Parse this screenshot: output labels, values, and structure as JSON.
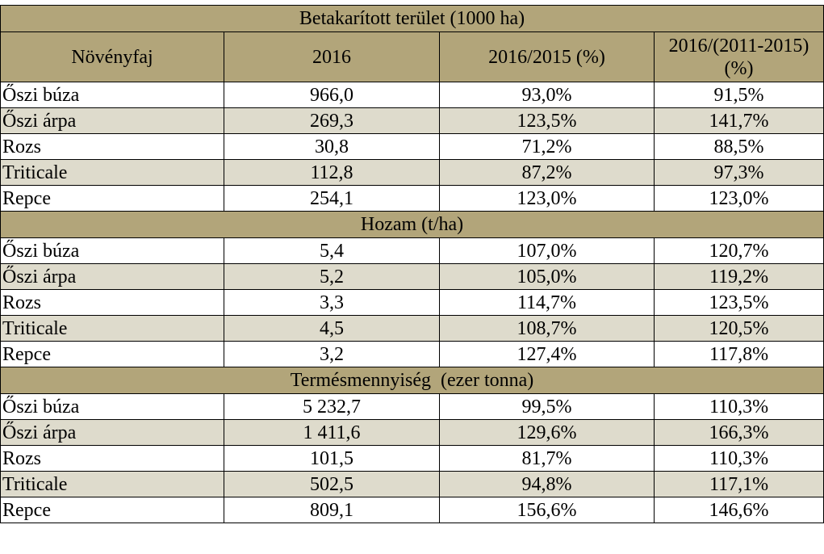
{
  "colors": {
    "header_bg": "#b2a57a",
    "stripe_bg": "#dedbcc",
    "row_bg": "#ffffff",
    "border": "#000000"
  },
  "columns": [
    "Növényfaj",
    "2016",
    "2016/2015 (%)",
    "2016/(2011-2015) (%)"
  ],
  "sections": [
    {
      "title": "Betakarított terület (1000 ha)",
      "rows": [
        [
          "Őszi búza",
          "966,0",
          "93,0%",
          "91,5%"
        ],
        [
          "Őszi árpa",
          "269,3",
          "123,5%",
          "141,7%"
        ],
        [
          "Rozs",
          "30,8",
          "71,2%",
          "88,5%"
        ],
        [
          "Triticale",
          "112,8",
          "87,2%",
          "97,3%"
        ],
        [
          "Repce",
          "254,1",
          "123,0%",
          "123,0%"
        ]
      ]
    },
    {
      "title": "Hozam (t/ha)",
      "rows": [
        [
          "Őszi búza",
          "5,4",
          "107,0%",
          "120,7%"
        ],
        [
          "Őszi árpa",
          "5,2",
          "105,0%",
          "119,2%"
        ],
        [
          "Rozs",
          "3,3",
          "114,7%",
          "123,5%"
        ],
        [
          "Triticale",
          "4,5",
          "108,7%",
          "120,5%"
        ],
        [
          "Repce",
          "3,2",
          "127,4%",
          "117,8%"
        ]
      ]
    },
    {
      "title": "Termésmennyiség  (ezer tonna)",
      "rows": [
        [
          "Őszi búza",
          "5 232,7",
          "99,5%",
          "110,3%"
        ],
        [
          "Őszi árpa",
          "1 411,6",
          "129,6%",
          "166,3%"
        ],
        [
          "Rozs",
          "101,5",
          "81,7%",
          "110,3%"
        ],
        [
          "Triticale",
          "502,5",
          "94,8%",
          "117,1%"
        ],
        [
          "Repce",
          "809,1",
          "156,6%",
          "146,6%"
        ]
      ]
    }
  ]
}
